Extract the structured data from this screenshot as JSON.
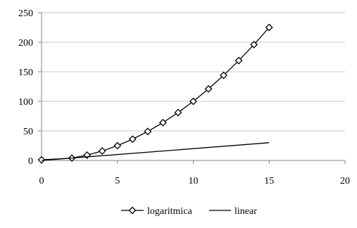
{
  "chart_data": {
    "type": "line",
    "title": "",
    "xlabel": "",
    "ylabel": "",
    "xlim": [
      0,
      20
    ],
    "ylim": [
      0,
      250
    ],
    "x_ticks": [
      "0",
      "5",
      "10",
      "15",
      "20"
    ],
    "y_ticks": [
      "0",
      "50",
      "100",
      "150",
      "200",
      "250"
    ],
    "grid": "horizontal",
    "legend_position": "bottom",
    "series": [
      {
        "name": "logaritmica",
        "marker": "diamond",
        "color": "#000000",
        "x": [
          0,
          2,
          3,
          4,
          5,
          6,
          7,
          8,
          9,
          10,
          11,
          12,
          13,
          14,
          15
        ],
        "y": [
          1,
          4,
          9,
          16,
          25,
          36,
          49,
          64,
          81,
          100,
          121,
          144,
          169,
          196,
          225
        ]
      },
      {
        "name": "linear",
        "marker": "none",
        "color": "#000000",
        "x": [
          0,
          15
        ],
        "y": [
          0,
          30
        ]
      }
    ]
  }
}
